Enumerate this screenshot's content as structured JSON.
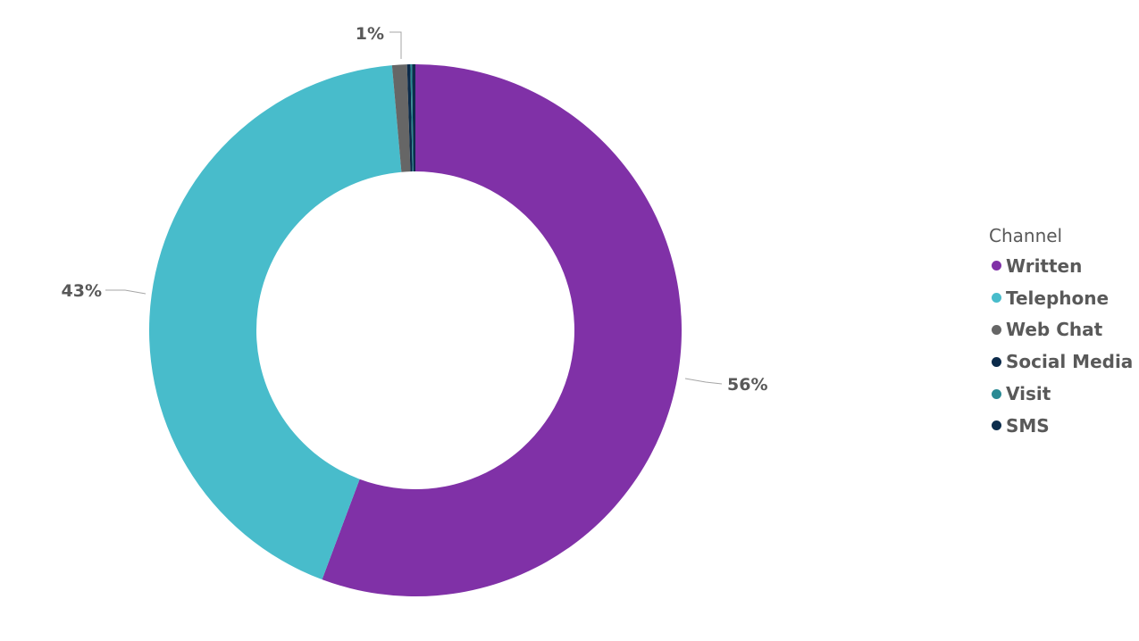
{
  "chart_data": {
    "type": "pie",
    "donut": true,
    "categories": [
      "Written",
      "Telephone",
      "Web Chat",
      "Social Media",
      "Visit",
      "SMS"
    ],
    "values": [
      55.7,
      42.9,
      0.9,
      0.2,
      0.1,
      0.2
    ],
    "data_labels": [
      "56%",
      "43%",
      "1%",
      "",
      "",
      ""
    ],
    "colors": [
      "#8031a7",
      "#48bccb",
      "#666666",
      "#0b2a4a",
      "#2a8a94",
      "#0c2d4c"
    ],
    "legend": {
      "title": "Channel",
      "placement": "right"
    },
    "start_angle": "12 o'clock",
    "direction": "clockwise"
  }
}
